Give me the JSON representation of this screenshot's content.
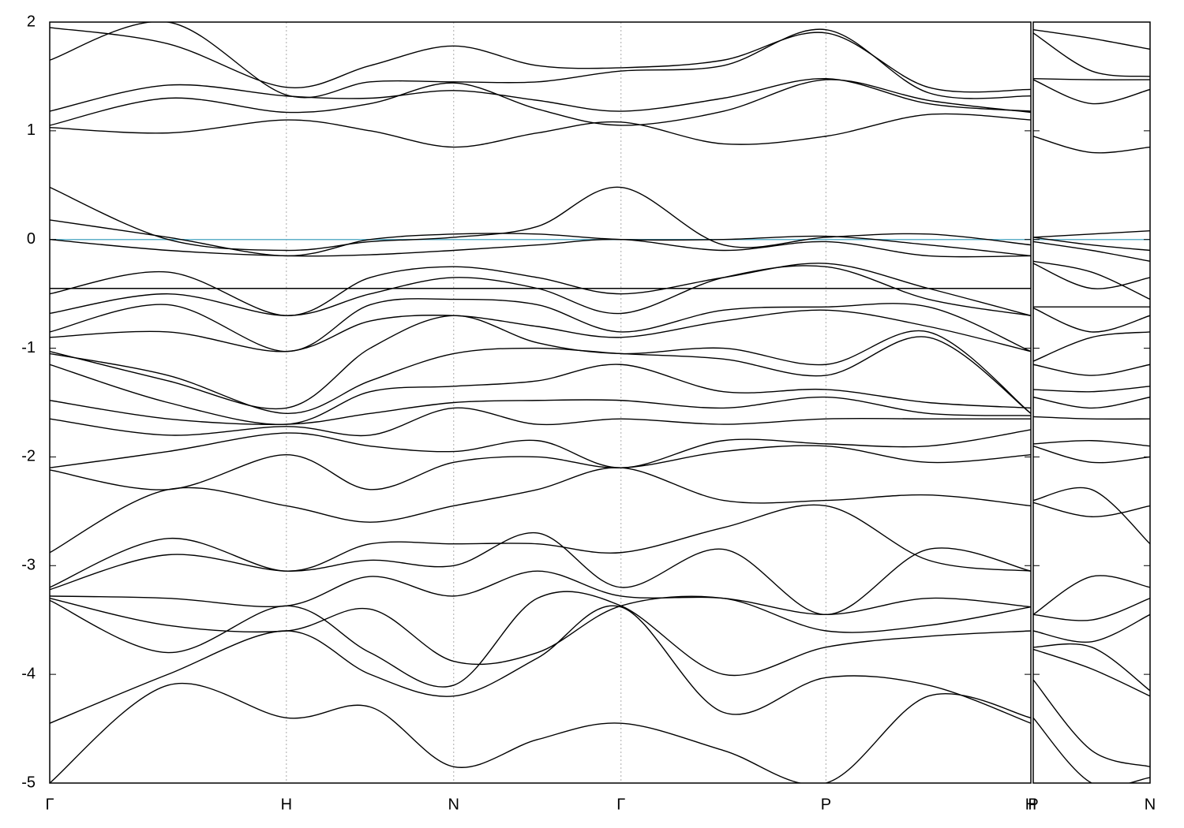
{
  "chart_data": [
    {
      "type": "line",
      "color": "#000000",
      "xlim": [
        0,
        4.146
      ],
      "ylim": [
        -5,
        2
      ],
      "xticks": [
        {
          "value": 0,
          "label": "Γ"
        },
        {
          "value": 1,
          "label": "H"
        },
        {
          "value": 1.707,
          "label": "N"
        },
        {
          "value": 2.414,
          "label": "Γ"
        },
        {
          "value": 3.28,
          "label": "P"
        },
        {
          "value": 4.146,
          "label": "H"
        }
      ],
      "yticks": [
        -5,
        -4,
        -3,
        -2,
        -1,
        0,
        1,
        2
      ],
      "ytick_labels": true,
      "grid": "x",
      "fermi_level": 0,
      "fermi_color": "#5fb0c9",
      "x": [
        0,
        0.5,
        1,
        1.354,
        1.707,
        2.061,
        2.414,
        2.847,
        3.28,
        3.713,
        4.146
      ],
      "series": [
        {
          "values": [
            1.95,
            1.8,
            1.4,
            1.6,
            1.78,
            1.6,
            1.58,
            1.65,
            1.9,
            1.4,
            1.38
          ]
        },
        {
          "values": [
            1.65,
            2.0,
            1.33,
            1.45,
            1.45,
            1.45,
            1.55,
            1.6,
            1.93,
            1.35,
            1.32
          ]
        },
        {
          "values": [
            1.18,
            1.42,
            1.32,
            1.3,
            1.37,
            1.28,
            1.18,
            1.3,
            1.48,
            1.25,
            1.18
          ]
        },
        {
          "values": [
            1.05,
            1.3,
            1.17,
            1.25,
            1.44,
            1.2,
            1.05,
            1.18,
            1.47,
            1.28,
            1.17
          ]
        },
        {
          "values": [
            1.03,
            0.98,
            1.1,
            1.0,
            0.85,
            0.98,
            1.08,
            0.88,
            0.95,
            1.15,
            1.1
          ]
        },
        {
          "values": [
            0.48,
            0.0,
            -0.1,
            -0.02,
            0.02,
            0.12,
            0.48,
            -0.05,
            0.02,
            0.05,
            -0.05
          ]
        },
        {
          "values": [
            0.18,
            0.02,
            -0.15,
            0.0,
            0.05,
            0.05,
            0.0,
            0.0,
            0.03,
            -0.05,
            -0.15
          ]
        },
        {
          "values": [
            0.0,
            -0.1,
            -0.15,
            -0.14,
            -0.1,
            -0.05,
            0.0,
            -0.1,
            -0.02,
            -0.15,
            -0.15
          ]
        },
        {
          "values": [
            -0.45,
            -0.45,
            -0.45,
            -0.45,
            -0.45,
            -0.45,
            -0.45,
            -0.45,
            -0.45,
            -0.45,
            -0.45
          ]
        },
        {
          "values": [
            -0.5,
            -0.3,
            -0.7,
            -0.35,
            -0.25,
            -0.35,
            -0.5,
            -0.35,
            -0.22,
            -0.45,
            -0.7
          ]
        },
        {
          "values": [
            -0.68,
            -0.5,
            -0.7,
            -0.5,
            -0.35,
            -0.45,
            -0.68,
            -0.35,
            -0.25,
            -0.55,
            -0.7
          ]
        },
        {
          "values": [
            -0.85,
            -0.6,
            -1.03,
            -0.6,
            -0.55,
            -0.6,
            -0.85,
            -0.65,
            -0.62,
            -0.62,
            -1.03
          ]
        },
        {
          "values": [
            -0.9,
            -0.85,
            -1.03,
            -0.75,
            -0.7,
            -0.8,
            -0.9,
            -0.75,
            -0.65,
            -0.8,
            -1.03
          ]
        },
        {
          "values": [
            -1.03,
            -1.3,
            -1.55,
            -1.0,
            -0.7,
            -0.95,
            -1.05,
            -1.0,
            -1.15,
            -0.85,
            -1.6
          ]
        },
        {
          "values": [
            -1.05,
            -1.25,
            -1.6,
            -1.3,
            -1.05,
            -1.0,
            -1.05,
            -1.1,
            -1.25,
            -0.9,
            -1.6
          ]
        },
        {
          "values": [
            -1.15,
            -1.5,
            -1.7,
            -1.4,
            -1.35,
            -1.3,
            -1.15,
            -1.4,
            -1.38,
            -1.5,
            -1.55
          ]
        },
        {
          "values": [
            -1.48,
            -1.65,
            -1.7,
            -1.6,
            -1.5,
            -1.48,
            -1.48,
            -1.55,
            -1.45,
            -1.6,
            -1.62
          ]
        },
        {
          "values": [
            -1.65,
            -1.8,
            -1.72,
            -1.8,
            -1.55,
            -1.7,
            -1.65,
            -1.7,
            -1.65,
            -1.65,
            -1.65
          ]
        },
        {
          "values": [
            -2.1,
            -1.95,
            -1.78,
            -1.9,
            -1.95,
            -1.85,
            -2.1,
            -1.85,
            -1.88,
            -1.9,
            -1.75
          ]
        },
        {
          "values": [
            -2.12,
            -2.3,
            -1.98,
            -2.3,
            -2.05,
            -2.0,
            -2.1,
            -1.95,
            -1.9,
            -2.05,
            -1.98
          ]
        },
        {
          "values": [
            -2.88,
            -2.3,
            -2.45,
            -2.6,
            -2.45,
            -2.3,
            -2.1,
            -2.4,
            -2.4,
            -2.35,
            -2.45
          ]
        },
        {
          "values": [
            -3.2,
            -2.75,
            -3.05,
            -2.8,
            -2.8,
            -2.8,
            -2.88,
            -2.65,
            -2.45,
            -2.95,
            -3.05
          ]
        },
        {
          "values": [
            -3.22,
            -2.9,
            -3.05,
            -2.95,
            -3.0,
            -2.7,
            -3.2,
            -2.85,
            -3.45,
            -2.85,
            -3.05
          ]
        },
        {
          "values": [
            -3.28,
            -3.3,
            -3.37,
            -3.1,
            -3.28,
            -3.05,
            -3.28,
            -3.3,
            -3.45,
            -3.3,
            -3.38
          ]
        },
        {
          "values": [
            -3.3,
            -3.55,
            -3.6,
            -3.4,
            -3.88,
            -3.8,
            -3.37,
            -3.3,
            -3.6,
            -3.55,
            -3.38
          ]
        },
        {
          "values": [
            -3.32,
            -3.8,
            -3.37,
            -3.8,
            -4.1,
            -3.3,
            -3.37,
            -4.0,
            -3.75,
            -3.65,
            -3.6
          ]
        },
        {
          "values": [
            -4.45,
            -4.0,
            -3.6,
            -4.0,
            -4.2,
            -3.85,
            -3.38,
            -4.35,
            -4.03,
            -4.1,
            -4.45
          ]
        },
        {
          "values": [
            -5.0,
            -4.1,
            -4.4,
            -4.3,
            -4.85,
            -4.6,
            -4.45,
            -4.7,
            -5.0,
            -4.2,
            -4.4
          ]
        }
      ]
    },
    {
      "type": "line",
      "color": "#000000",
      "xlim": [
        0,
        0.5
      ],
      "ylim": [
        -5,
        2
      ],
      "xticks": [
        {
          "value": 0,
          "label": "P"
        },
        {
          "value": 0.5,
          "label": "N"
        }
      ],
      "yticks": [
        -5,
        -4,
        -3,
        -2,
        -1,
        0,
        1,
        2
      ],
      "ytick_labels": false,
      "grid": "x",
      "fermi_level": 0,
      "fermi_color": "#5fb0c9",
      "x": [
        0,
        0.25,
        0.5
      ],
      "series": [
        {
          "values": [
            1.93,
            1.85,
            1.75
          ]
        },
        {
          "values": [
            1.9,
            1.55,
            1.5
          ]
        },
        {
          "values": [
            1.48,
            1.47,
            1.47
          ]
        },
        {
          "values": [
            1.47,
            1.25,
            1.38
          ]
        },
        {
          "values": [
            0.95,
            0.8,
            0.85
          ]
        },
        {
          "values": [
            0.02,
            0.05,
            0.08
          ]
        },
        {
          "values": [
            0.02,
            -0.05,
            -0.1
          ]
        },
        {
          "values": [
            -0.02,
            -0.1,
            -0.2
          ]
        },
        {
          "values": [
            -0.2,
            -0.3,
            -0.55
          ]
        },
        {
          "values": [
            -0.22,
            -0.45,
            -0.35
          ]
        },
        {
          "values": [
            -0.62,
            -0.62,
            -0.62
          ]
        },
        {
          "values": [
            -0.63,
            -0.85,
            -0.7
          ]
        },
        {
          "values": [
            -1.12,
            -0.9,
            -0.85
          ]
        },
        {
          "values": [
            -1.15,
            -1.25,
            -1.15
          ]
        },
        {
          "values": [
            -1.38,
            -1.4,
            -1.35
          ]
        },
        {
          "values": [
            -1.45,
            -1.55,
            -1.45
          ]
        },
        {
          "values": [
            -1.63,
            -1.65,
            -1.65
          ]
        },
        {
          "values": [
            -1.88,
            -1.85,
            -1.9
          ]
        },
        {
          "values": [
            -1.9,
            -2.05,
            -2.0
          ]
        },
        {
          "values": [
            -2.4,
            -2.3,
            -2.8
          ]
        },
        {
          "values": [
            -2.42,
            -2.55,
            -2.45
          ]
        },
        {
          "values": [
            -3.45,
            -3.1,
            -3.2
          ]
        },
        {
          "values": [
            -3.45,
            -3.5,
            -3.3
          ]
        },
        {
          "values": [
            -3.6,
            -3.7,
            -3.45
          ]
        },
        {
          "values": [
            -3.75,
            -3.75,
            -4.15
          ]
        },
        {
          "values": [
            -3.77,
            -3.95,
            -4.2
          ]
        },
        {
          "values": [
            -4.05,
            -4.7,
            -4.85
          ]
        },
        {
          "values": [
            -4.4,
            -5.0,
            -4.95
          ]
        }
      ]
    }
  ]
}
